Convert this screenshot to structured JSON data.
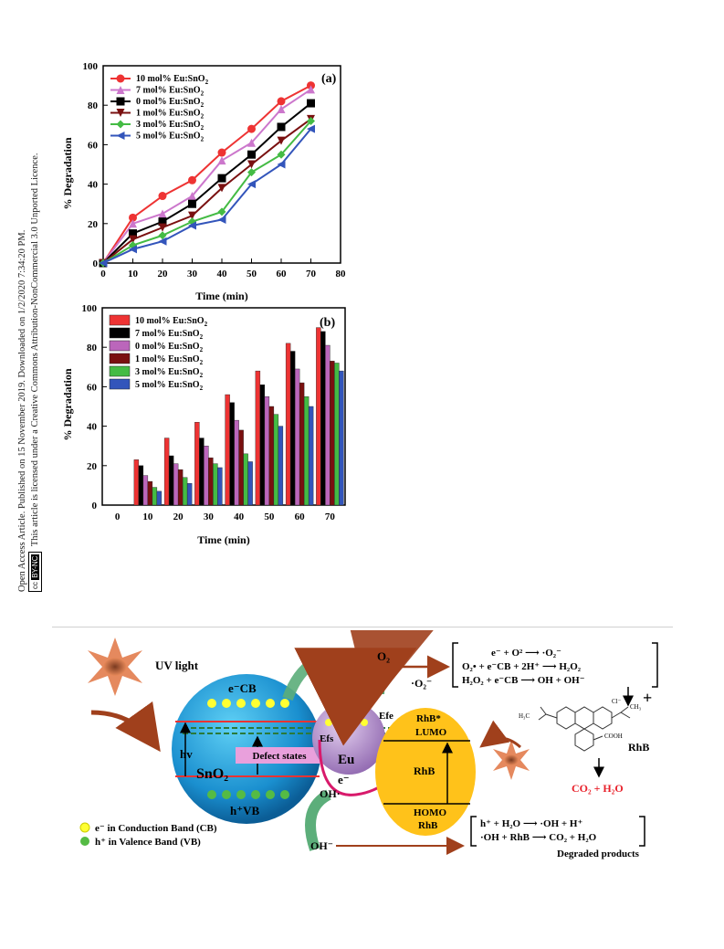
{
  "side_note": {
    "line1": "Open Access Article. Published on 15 November 2019. Downloaded on 1/2/2020 7:34:20 PM.",
    "line2": "This article is licensed under a Creative Commons Attribution-NonCommercial 3.0 Unported Licence.",
    "badge_cc": "cc",
    "badge_text": "BY-NC"
  },
  "chart_data": [
    {
      "type": "line",
      "panel_label": "(a)",
      "xlabel": "Time (min)",
      "ylabel": "% Degradation",
      "xlim": [
        0,
        80
      ],
      "ylim": [
        0,
        100
      ],
      "xticks": [
        0,
        10,
        20,
        30,
        40,
        50,
        60,
        70,
        80
      ],
      "yticks": [
        0,
        20,
        40,
        60,
        80,
        100
      ],
      "x": [
        0,
        10,
        20,
        30,
        40,
        50,
        60,
        70
      ],
      "legend_position": "top-left",
      "series": [
        {
          "name": "10 mol% Eu:SnO2",
          "color": "#ee3333",
          "marker": "circle",
          "values": [
            0,
            23,
            34,
            42,
            56,
            68,
            82,
            90
          ]
        },
        {
          "name": "7 mol% Eu:SnO2",
          "color": "#cc77cc",
          "marker": "triangle",
          "values": [
            0,
            20,
            25,
            34,
            52,
            61,
            78,
            88
          ]
        },
        {
          "name": "0 mol% Eu:SnO2",
          "color": "#000000",
          "marker": "square",
          "values": [
            0,
            15,
            21,
            30,
            43,
            55,
            69,
            81
          ]
        },
        {
          "name": "1 mol% Eu:SnO2",
          "color": "#7a1010",
          "marker": "tri-down",
          "values": [
            0,
            12,
            18,
            24,
            38,
            50,
            62,
            73
          ]
        },
        {
          "name": "3 mol% Eu:SnO2",
          "color": "#44bb44",
          "marker": "diamond",
          "values": [
            0,
            9,
            14,
            21,
            26,
            46,
            55,
            72
          ]
        },
        {
          "name": "5 mol% Eu:SnO2",
          "color": "#3355bb",
          "marker": "left-tri",
          "values": [
            0,
            7,
            11,
            19,
            22,
            40,
            50,
            68
          ]
        }
      ]
    },
    {
      "type": "bar",
      "panel_label": "(b)",
      "xlabel": "Time (min)",
      "ylabel": "% Degradation",
      "ylim": [
        0,
        100
      ],
      "yticks": [
        0,
        20,
        40,
        60,
        80,
        100
      ],
      "categories": [
        "0",
        "10",
        "20",
        "30",
        "40",
        "50",
        "60",
        "70"
      ],
      "legend_position": "top-left",
      "series": [
        {
          "name": "10 mol% Eu:SnO2",
          "color": "#ee3333",
          "values": [
            0,
            23,
            34,
            42,
            56,
            68,
            82,
            90
          ]
        },
        {
          "name": "7 mol% Eu:SnO2",
          "color": "#000000",
          "values": [
            0,
            20,
            25,
            34,
            52,
            61,
            78,
            88
          ]
        },
        {
          "name": "0 mol% Eu:SnO2",
          "color": "#bb66bb",
          "values": [
            0,
            15,
            21,
            30,
            43,
            55,
            69,
            81
          ]
        },
        {
          "name": "1 mol% Eu:SnO2",
          "color": "#7a1010",
          "values": [
            0,
            12,
            18,
            24,
            38,
            50,
            62,
            73
          ]
        },
        {
          "name": "3 mol% Eu:SnO2",
          "color": "#44bb44",
          "values": [
            0,
            9,
            14,
            21,
            26,
            46,
            55,
            72
          ]
        },
        {
          "name": "5 mol% Eu:SnO2",
          "color": "#3355bb",
          "values": [
            0,
            7,
            11,
            19,
            22,
            40,
            50,
            68
          ]
        }
      ]
    }
  ],
  "scheme": {
    "uv_light": "UV light",
    "ecb": "e⁻CB",
    "hv": "hv",
    "sno2": "SnO₂",
    "hvb": "h⁺VB",
    "defect_states": "Defect states",
    "efs": "Efs",
    "efe": "Efe",
    "e_minus": "e⁻",
    "eu": "Eu",
    "e_minus_2": "e⁻",
    "o2": "O₂",
    "o2_radical": "·O₂⁻",
    "rhb_star": "RhB*",
    "lumo": "LUMO",
    "rhb": "RhB",
    "homo": "HOMO",
    "rhb_bottom": "RhB",
    "oh_radical": "OH·",
    "oh_minus": "OH⁻",
    "legend_cb": "e⁻ in Conduction Band (CB)",
    "legend_vb": "h⁺ in Valence Band (VB)",
    "eq1": "e⁻ + O²  ⟶  ·O₂⁻",
    "eq2": "O₂•  +  e⁻CB  +  2H⁺  ⟶  H₂O₂",
    "eq3": "H₂O₂  +  e⁻CB  ⟶ OH  +  OH⁻",
    "plus": "+",
    "rhb_label": "RhB",
    "cooh": "COOH",
    "ch3": "CH₃",
    "h3c": "H₃C",
    "cl": "Cl⁻",
    "products": "CO₂ + H₂O",
    "eq4": "h⁺ +  H₂O ⟶ ·OH  +  H⁺",
    "eq5": "·OH + RhB ⟶ CO₂ + H₂O",
    "degraded": "Degraded products",
    "colors": {
      "sphere_blue": "#1ea0d8",
      "eu_purple": "#b48cc8",
      "rhb_yellow": "#ffc21a",
      "arrow_brown": "#a0401c",
      "arrow_green": "#5cae7a",
      "red_text": "#e8202a"
    }
  }
}
